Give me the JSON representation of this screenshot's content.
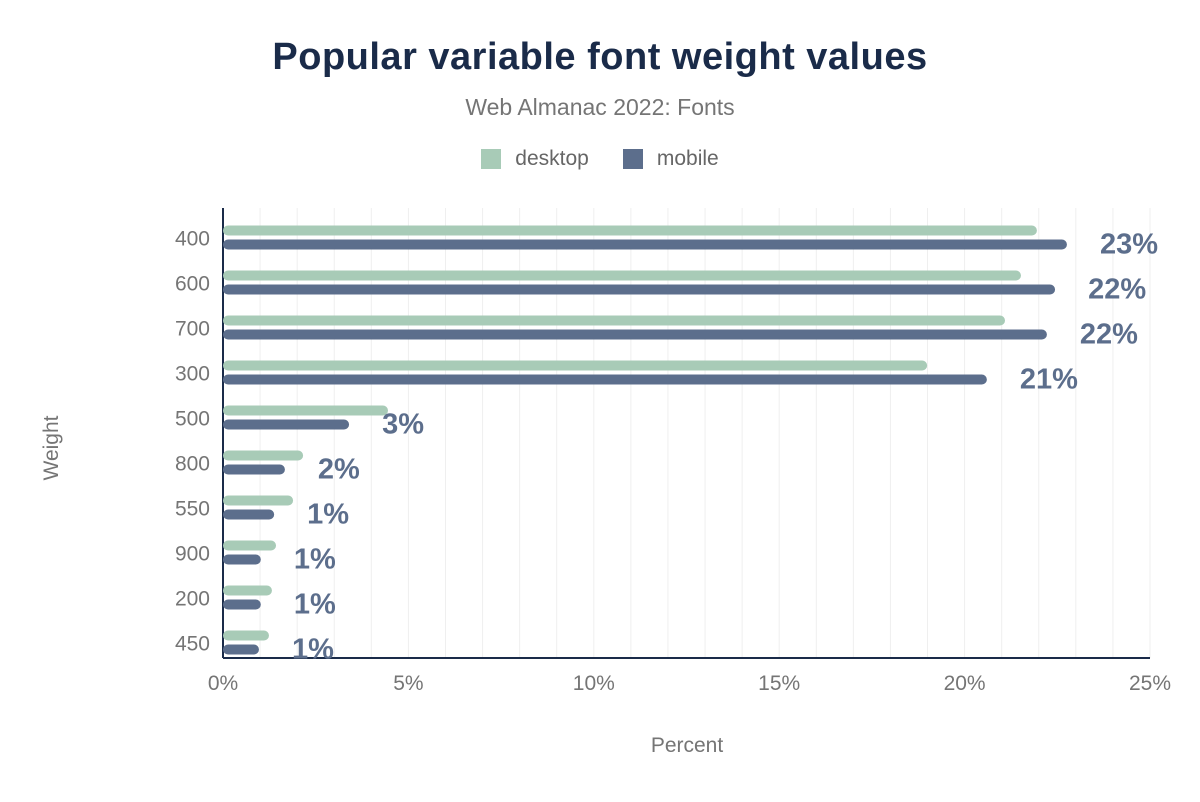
{
  "chart_data": {
    "type": "bar",
    "orientation": "horizontal",
    "title": "Popular variable font weight values",
    "subtitle": "Web Almanac 2022: Fonts",
    "xlabel": "Percent",
    "ylabel": "Weight",
    "xlim": [
      0,
      25
    ],
    "x_ticks": [
      "0%",
      "5%",
      "10%",
      "15%",
      "20%",
      "25%"
    ],
    "grid": true,
    "legend_position": "top",
    "categories": [
      "400",
      "600",
      "700",
      "300",
      "500",
      "800",
      "550",
      "900",
      "200",
      "450"
    ],
    "series": [
      {
        "name": "desktop",
        "color": "#a8cbb7",
        "values": [
          21.95,
          21.52,
          21.09,
          18.99,
          4.45,
          2.16,
          1.89,
          1.43,
          1.32,
          1.24
        ]
      },
      {
        "name": "mobile",
        "color": "#5c6e8c",
        "values": [
          22.76,
          22.44,
          22.22,
          20.6,
          3.4,
          1.67,
          1.38,
          1.02,
          1.02,
          0.97
        ]
      }
    ],
    "data_labels": [
      "23%",
      "22%",
      "22%",
      "21%",
      "3%",
      "2%",
      "1%",
      "1%",
      "1%",
      "1%"
    ]
  }
}
